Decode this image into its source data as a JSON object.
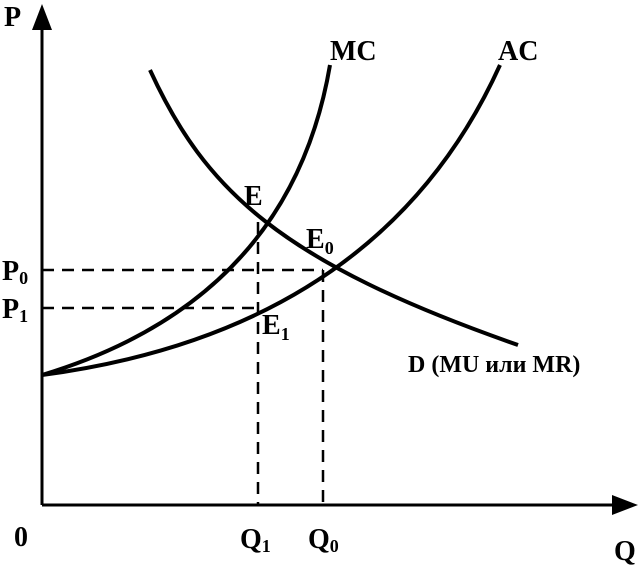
{
  "axes": {
    "y": "P",
    "x": "Q",
    "origin": "0"
  },
  "curves": {
    "mc": "MC",
    "ac": "AC",
    "demand": "D (MU или MR)"
  },
  "points": {
    "e": "E",
    "e0": {
      "text": "E",
      "sub": "0"
    },
    "e1": {
      "text": "E",
      "sub": "1"
    }
  },
  "levels": {
    "p0": {
      "text": "P",
      "sub": "0"
    },
    "p1": {
      "text": "P",
      "sub": "1"
    },
    "q1": {
      "text": "Q",
      "sub": "1"
    },
    "q0": {
      "text": "Q",
      "sub": "0"
    }
  }
}
